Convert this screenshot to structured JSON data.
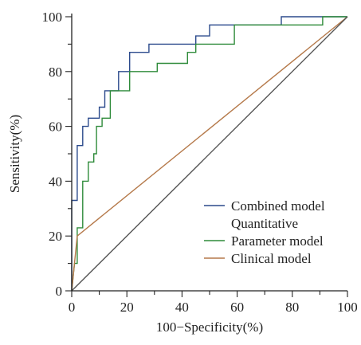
{
  "chart_data": {
    "type": "line",
    "title": "",
    "xlabel": "100−Specificity(%)",
    "ylabel": "Sensitivity(%)",
    "xlim": [
      0,
      100
    ],
    "ylim": [
      0,
      100
    ],
    "x_ticks": [
      "0",
      "20",
      "40",
      "60",
      "80",
      "100"
    ],
    "y_ticks": [
      "0",
      "20",
      "40",
      "60",
      "80",
      "100"
    ],
    "grid": false,
    "legend_position": "bottom-right",
    "legend": [
      {
        "lines": [
          "Combined model"
        ],
        "color": "#2b4a8c"
      },
      {
        "lines": [
          "Quantitative",
          "Parameter model"
        ],
        "color": "#2e8b3a"
      },
      {
        "lines": [
          "Clinical model"
        ],
        "color": "#b5794a"
      }
    ],
    "series": [
      {
        "name": "Combined model",
        "color": "#2b4a8c",
        "points": [
          [
            0,
            0
          ],
          [
            0,
            33
          ],
          [
            2,
            33
          ],
          [
            2,
            53
          ],
          [
            4,
            53
          ],
          [
            4,
            60
          ],
          [
            6,
            60
          ],
          [
            6,
            63
          ],
          [
            10,
            63
          ],
          [
            10,
            67
          ],
          [
            12,
            67
          ],
          [
            12,
            73
          ],
          [
            17,
            73
          ],
          [
            17,
            80
          ],
          [
            21,
            80
          ],
          [
            21,
            87
          ],
          [
            28,
            87
          ],
          [
            28,
            90
          ],
          [
            45,
            90
          ],
          [
            45,
            93
          ],
          [
            50,
            93
          ],
          [
            50,
            97
          ],
          [
            76,
            97
          ],
          [
            76,
            100
          ],
          [
            100,
            100
          ]
        ]
      },
      {
        "name": "Quantitative Parameter model",
        "color": "#2e8b3a",
        "points": [
          [
            0,
            0
          ],
          [
            1,
            10
          ],
          [
            2,
            10
          ],
          [
            2,
            23
          ],
          [
            4,
            23
          ],
          [
            4,
            40
          ],
          [
            6,
            40
          ],
          [
            6,
            47
          ],
          [
            8,
            47
          ],
          [
            8,
            50
          ],
          [
            9,
            50
          ],
          [
            9,
            60
          ],
          [
            11,
            60
          ],
          [
            11,
            63
          ],
          [
            14,
            63
          ],
          [
            14,
            73
          ],
          [
            21,
            73
          ],
          [
            21,
            80
          ],
          [
            31,
            80
          ],
          [
            31,
            83
          ],
          [
            42,
            83
          ],
          [
            42,
            87
          ],
          [
            45,
            87
          ],
          [
            45,
            90
          ],
          [
            59,
            90
          ],
          [
            59,
            97
          ],
          [
            91,
            97
          ],
          [
            91,
            100
          ],
          [
            100,
            100
          ]
        ]
      },
      {
        "name": "Clinical model",
        "color": "#b5794a",
        "points": [
          [
            0,
            0
          ],
          [
            2,
            20
          ],
          [
            100,
            100
          ]
        ]
      },
      {
        "name": "Reference",
        "color": "#555555",
        "points": [
          [
            0,
            0
          ],
          [
            100,
            100
          ]
        ]
      }
    ]
  }
}
